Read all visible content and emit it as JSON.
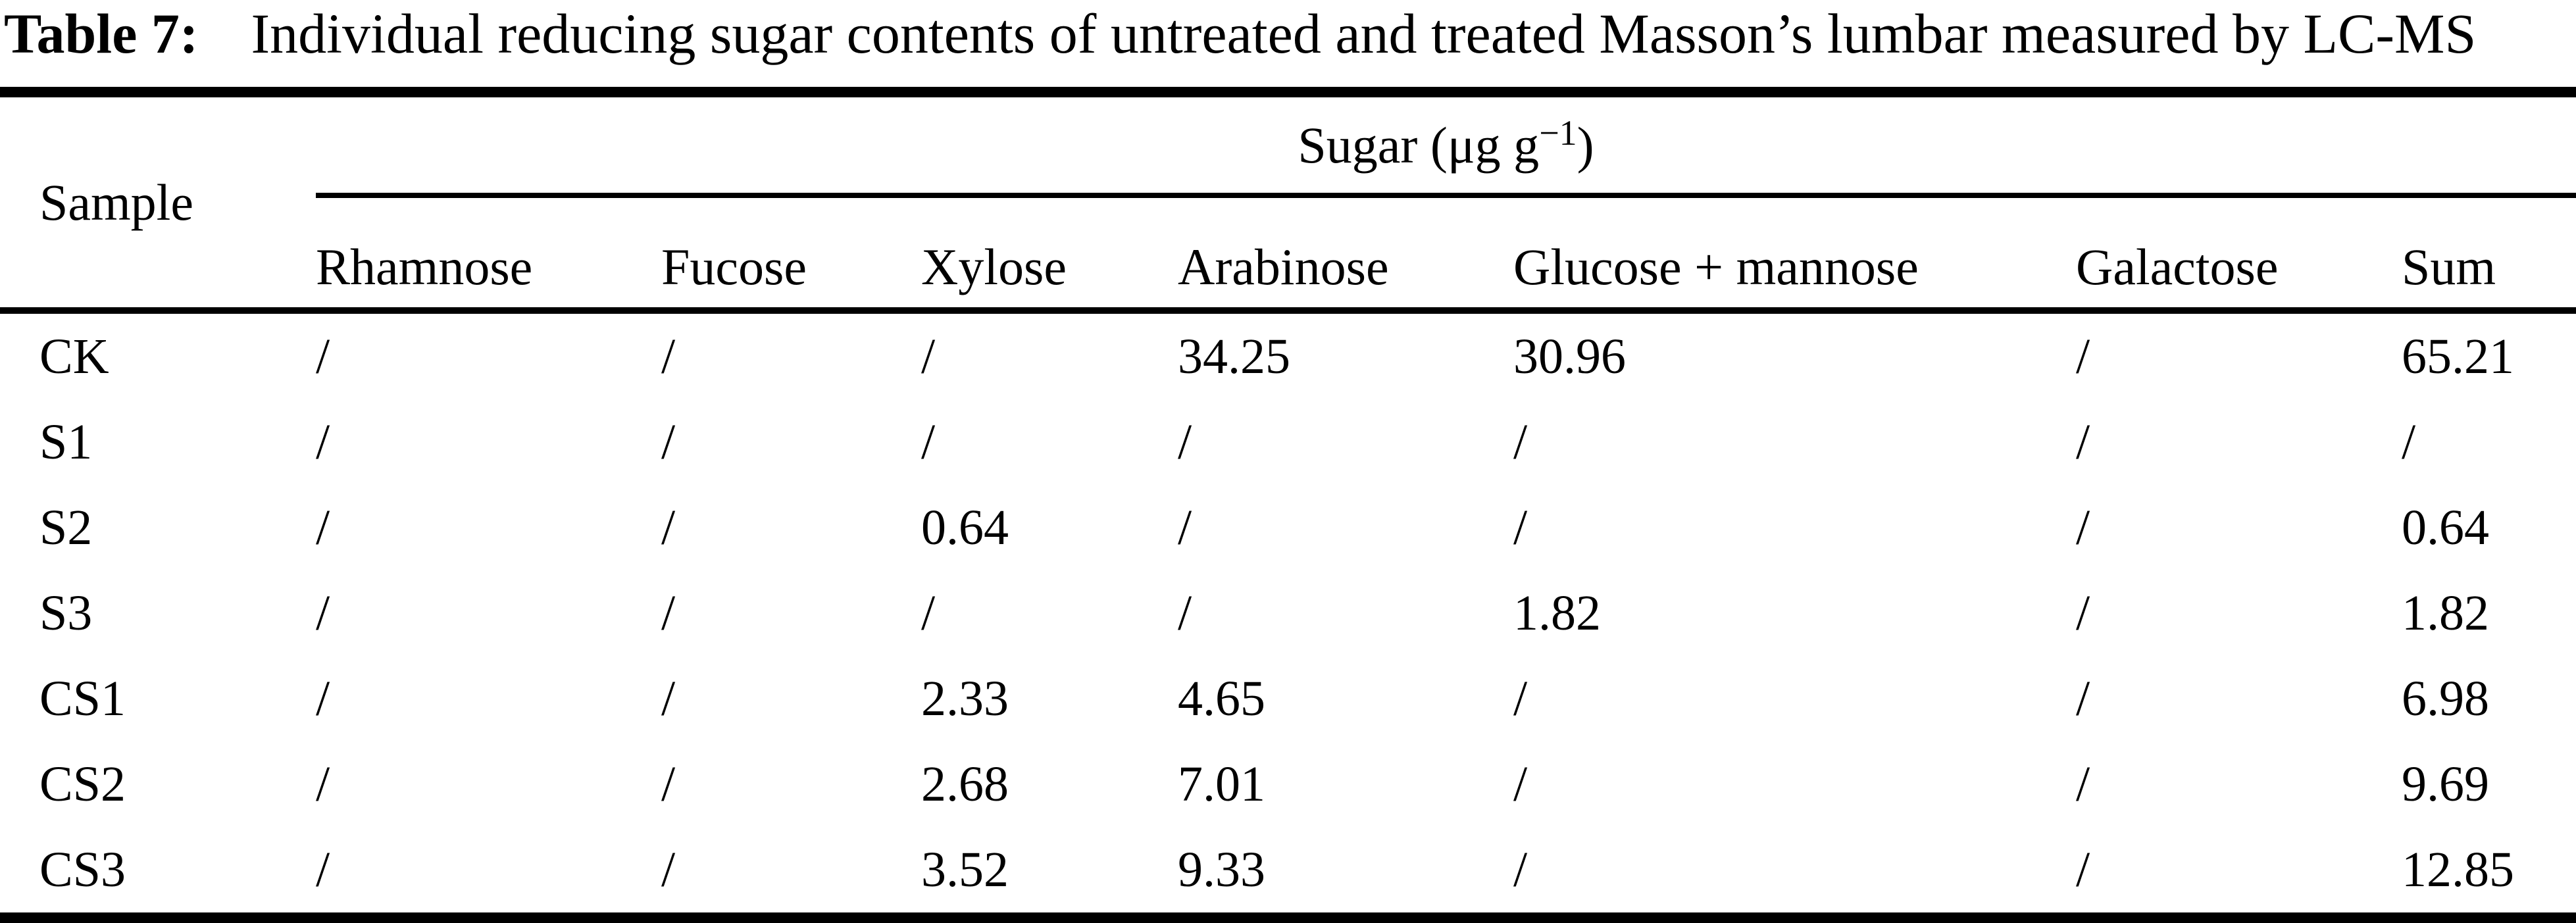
{
  "caption": {
    "label": "Table 7:",
    "text": "Individual reducing sugar contents of untreated and treated Masson’s lumbar measured by LC-MS"
  },
  "table": {
    "sample_header": "Sample",
    "sugar_group": {
      "prefix": "Sugar (μg g",
      "superscript": "−1",
      "suffix": ")"
    },
    "columns": [
      "Rhamnose",
      "Fucose",
      "Xylose",
      "Arabinose",
      "Glucose + mannose",
      "Galactose",
      "Sum"
    ],
    "not_detected_symbol": "/",
    "rows": [
      {
        "sample": "CK",
        "values": [
          "/",
          "/",
          "/",
          "34.25",
          "30.96",
          "/",
          "65.21"
        ]
      },
      {
        "sample": "S1",
        "values": [
          "/",
          "/",
          "/",
          "/",
          "/",
          "/",
          "/"
        ]
      },
      {
        "sample": "S2",
        "values": [
          "/",
          "/",
          "0.64",
          "/",
          "/",
          "/",
          "0.64"
        ]
      },
      {
        "sample": "S3",
        "values": [
          "/",
          "/",
          "/",
          "/",
          "1.82",
          "/",
          "1.82"
        ]
      },
      {
        "sample": "CS1",
        "values": [
          "/",
          "/",
          "2.33",
          "4.65",
          "/",
          "/",
          "6.98"
        ]
      },
      {
        "sample": "CS2",
        "values": [
          "/",
          "/",
          "2.68",
          "7.01",
          "/",
          "/",
          "9.69"
        ]
      },
      {
        "sample": "CS3",
        "values": [
          "/",
          "/",
          "3.52",
          "9.33",
          "/",
          "/",
          "12.85"
        ]
      }
    ]
  },
  "colors": {
    "text": "#000000",
    "background": "#ffffff",
    "rule": "#000000"
  }
}
